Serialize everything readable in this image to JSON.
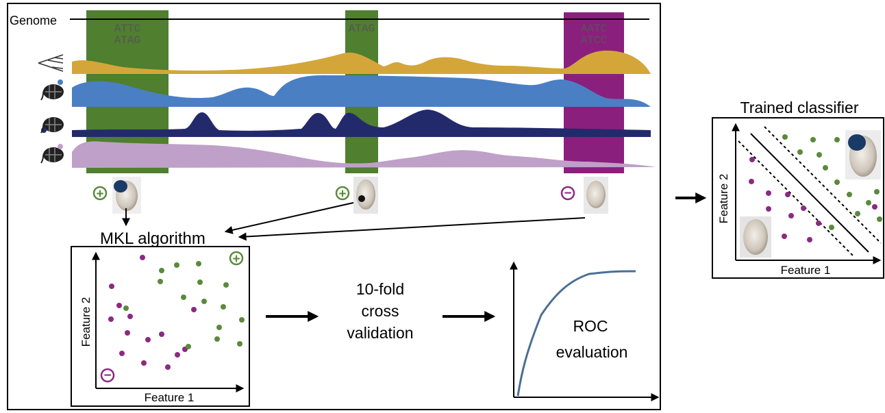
{
  "genome": {
    "label": "Genome",
    "motifs": [
      {
        "line1": "ATTC",
        "line2": "ATAG"
      },
      {
        "line1": "ATAG",
        "line2": ""
      },
      {
        "line1": "AATC",
        "line2": "ATCC"
      }
    ]
  },
  "tracks": [
    {
      "icon": "phylogeny-tree-icon",
      "color": "#d4a63a"
    },
    {
      "icon": "chromatin-nucleosome-icon",
      "color": "#4a7fc4"
    },
    {
      "icon": "chromatin-nucleosome-icon",
      "color": "#232a6b"
    },
    {
      "icon": "chromatin-nucleosome-icon",
      "color": "#bfa0c8"
    }
  ],
  "colors": {
    "positive": "#5a8a3a",
    "negative": "#8a2a82",
    "region_positive": "#4f7f2f",
    "region_negative": "#8b1f7e",
    "roc_curve": "#4a6f96",
    "embryo_stain": "#1a3a66"
  },
  "labels": {
    "positive_sign": "+",
    "negative_sign": "−",
    "mkl": "MKL algorithm",
    "cv_line1": "10-fold",
    "cv_line2": "cross",
    "cv_line3": "validation",
    "roc_line1": "ROC",
    "roc_line2": "evaluation",
    "trained": "Trained classifier",
    "feature1": "Feature 1",
    "feature2": "Feature 2"
  }
}
